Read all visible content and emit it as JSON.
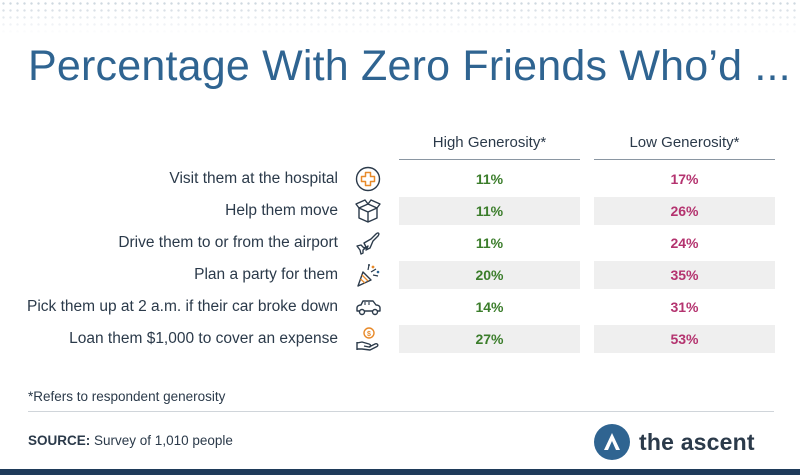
{
  "title": "Percentage With Zero Friends Who’d ...",
  "columns": {
    "high": "High Generosity*",
    "low": "Low Generosity*"
  },
  "rows": [
    {
      "label": "Visit them at the hospital",
      "icon": "hospital-cross-icon",
      "high": "11%",
      "low": "17%"
    },
    {
      "label": "Help them move",
      "icon": "moving-box-icon",
      "high": "11%",
      "low": "26%"
    },
    {
      "label": "Drive them to or from the airport",
      "icon": "airplane-icon",
      "high": "11%",
      "low": "24%"
    },
    {
      "label": "Plan a party for them",
      "icon": "party-popper-icon",
      "high": "20%",
      "low": "35%"
    },
    {
      "label": "Pick them up at 2 a.m. if their car broke down",
      "icon": "car-icon",
      "high": "14%",
      "low": "31%"
    },
    {
      "label": "Loan them $1,000 to cover an expense",
      "icon": "money-hand-icon",
      "high": "27%",
      "low": "53%"
    }
  ],
  "footnote": "*Refers to respondent generosity",
  "source": {
    "label": "SOURCE:",
    "text": "Survey of 1,010 people"
  },
  "brand": {
    "name": "the ascent",
    "color": "#2f6491"
  },
  "colors": {
    "high": "#3b7d2b",
    "low": "#b4336f",
    "title": "#2f6491",
    "row_shade": "#efefef"
  },
  "chart_data": {
    "type": "table",
    "title": "Percentage With Zero Friends Who’d ...",
    "columns": [
      "High Generosity*",
      "Low Generosity*"
    ],
    "categories": [
      "Visit them at the hospital",
      "Help them move",
      "Drive them to or from the airport",
      "Plan a party for them",
      "Pick them up at 2 a.m. if their car broke down",
      "Loan them $1,000 to cover an expense"
    ],
    "series": [
      {
        "name": "High Generosity*",
        "values": [
          11,
          11,
          11,
          20,
          14,
          27
        ]
      },
      {
        "name": "Low Generosity*",
        "values": [
          17,
          26,
          24,
          35,
          31,
          53
        ]
      }
    ],
    "unit": "%"
  }
}
